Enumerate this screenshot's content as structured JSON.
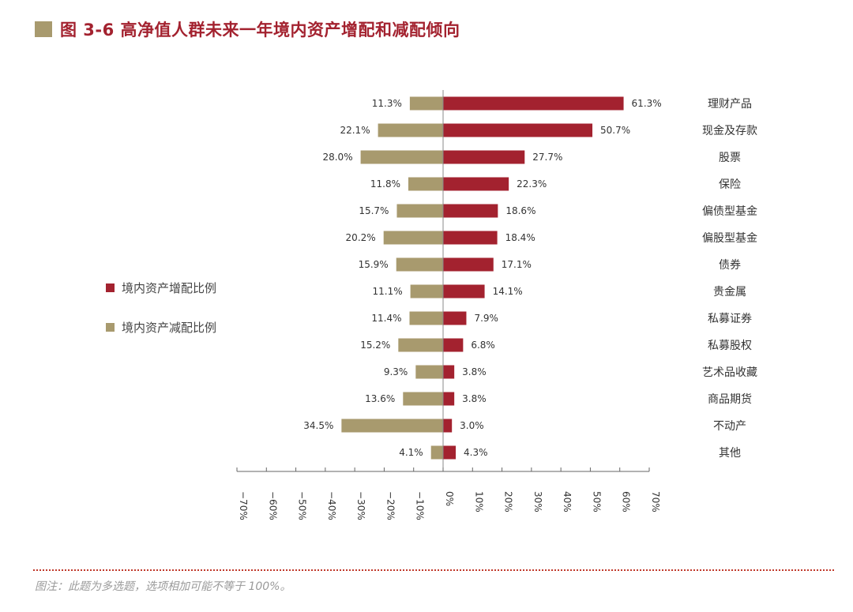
{
  "title": "图 3-6 高净值人群未来一年境内资产增配和减配倾向",
  "footnote": "图注：此题为多选题，选项相加可能不等于 100%。",
  "colors": {
    "increase": "#a3222f",
    "decrease": "#a89a6e",
    "title": "#a3222f"
  },
  "chart_data": {
    "type": "bar",
    "orientation": "horizontal-diverging",
    "title": "图 3-6 高净值人群未来一年境内资产增配和减配倾向",
    "categories": [
      "理财产品",
      "现金及存款",
      "股票",
      "保险",
      "偏债型基金",
      "偏股型基金",
      "债券",
      "贵金属",
      "私募证券",
      "私募股权",
      "艺术品收藏",
      "商品期货",
      "不动产",
      "其他"
    ],
    "series": [
      {
        "name": "境内资产增配比例",
        "values": [
          61.3,
          50.7,
          27.7,
          22.3,
          18.6,
          18.4,
          17.1,
          14.1,
          7.9,
          6.8,
          3.8,
          3.8,
          3.0,
          4.3
        ],
        "labels": [
          "61.3%",
          "50.7%",
          "27.7%",
          "22.3%",
          "18.6%",
          "18.4%",
          "17.1%",
          "14.1%",
          "7.9%",
          "6.8%",
          "3.8%",
          "3.8%",
          "3.0%",
          "4.3%"
        ]
      },
      {
        "name": "境内资产减配比例",
        "values": [
          -11.3,
          -22.1,
          -28.0,
          -11.8,
          -15.7,
          -20.2,
          -15.9,
          -11.1,
          -11.4,
          -15.2,
          -9.3,
          -13.6,
          -34.5,
          -4.1
        ],
        "labels": [
          "11.3%",
          "22.1%",
          "28.0%",
          "11.8%",
          "15.7%",
          "20.2%",
          "15.9%",
          "11.1%",
          "11.4%",
          "15.2%",
          "9.3%",
          "13.6%",
          "34.5%",
          "4.1%"
        ]
      }
    ],
    "xlim": [
      -70,
      70
    ],
    "xticks": [
      -70,
      -60,
      -50,
      -40,
      -30,
      -20,
      -10,
      0,
      10,
      20,
      30,
      40,
      50,
      60,
      70
    ],
    "xtick_labels": [
      "−70%",
      "−60%",
      "−50%",
      "−40%",
      "−30%",
      "−20%",
      "−10%",
      "0%",
      "10%",
      "20%",
      "30%",
      "40%",
      "50%",
      "60%",
      "70%"
    ],
    "legend": [
      "境内资产增配比例",
      "境内资产减配比例"
    ],
    "legend_position": "left",
    "grid": false
  }
}
